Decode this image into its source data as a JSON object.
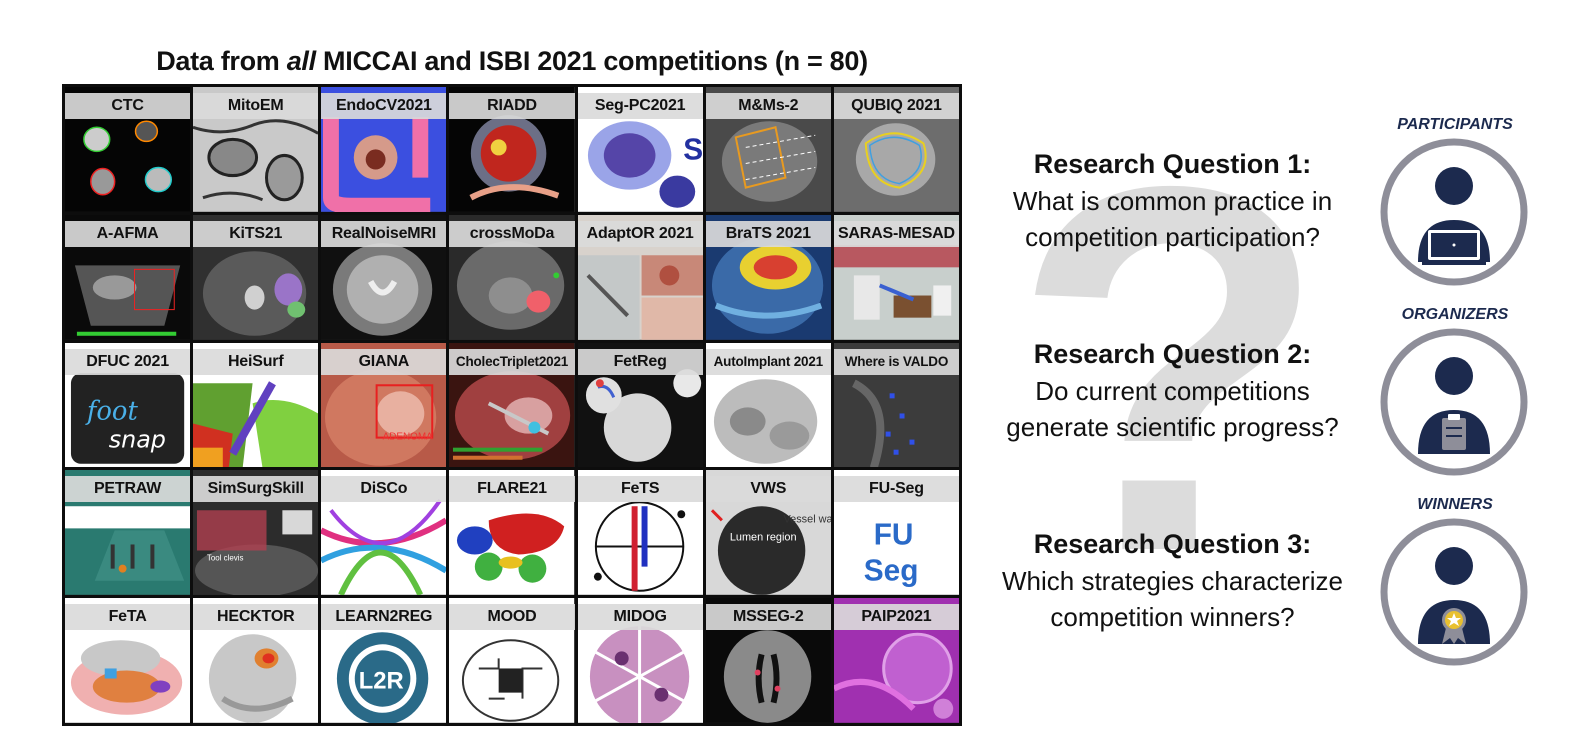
{
  "title": {
    "pre": "Data from ",
    "em": "all",
    "post": " MICCAI and ISBI 2021 competitions (n = 80)"
  },
  "competitions": [
    "CTC",
    "MitoEM",
    "EndoCV2021",
    "RIADD",
    "Seg-PC2021",
    "M&Ms-2",
    "QUBIQ 2021",
    "A-AFMA",
    "KiTS21",
    "RealNoiseMRI",
    "crossMoDa",
    "AdaptOR 2021",
    "BraTS 2021",
    "SARAS-MESAD",
    "DFUC 2021",
    "HeiSurf",
    "GIANA",
    "CholecTriplet2021",
    "FetReg",
    "AutoImplant 2021",
    "Where is VALDO",
    "PETRAW",
    "SimSurgSkill",
    "DiSCo",
    "FLARE21",
    "FeTS",
    "VWS",
    "FU-Seg",
    "FeTA",
    "HECKTOR",
    "LEARN2REG",
    "MOOD",
    "MIDOG",
    "MSSEG-2",
    "PAIP2021"
  ],
  "tile_texts": {
    "dfuc_logo_1": "foot",
    "dfuc_logo_2": "snap",
    "giana_box": "ADENOMA",
    "vws_lumen": "Lumen region",
    "vws_vessel": "Vessel wall region",
    "fuseg_1": "FU",
    "fuseg_2": "Seg",
    "l2r": "L2R",
    "simsurg_text": "Tool clevis",
    "seg_pc_glyph": "S"
  },
  "questions": [
    {
      "heading": "Research Question 1:",
      "line1": "What is common practice in",
      "line2": "competition participation?"
    },
    {
      "heading": "Research Question 2:",
      "line1": "Do current competitions",
      "line2": "generate scientific progress?"
    },
    {
      "heading": "Research Question 3:",
      "line1": "Which strategies characterize",
      "line2": "competition winners?"
    }
  ],
  "roles": [
    "PARTICIPANTS",
    "ORGANIZERS",
    "WINNERS"
  ],
  "background_glyph": "?",
  "icons": [
    "participant-laptop-icon",
    "organizer-clipboard-icon",
    "winner-medal-icon"
  ],
  "colors": {
    "navy": "#1c2a4e",
    "ring": "#8e8e99",
    "label_bg": "#dadada",
    "grid_bg": "#0d0d0d"
  }
}
